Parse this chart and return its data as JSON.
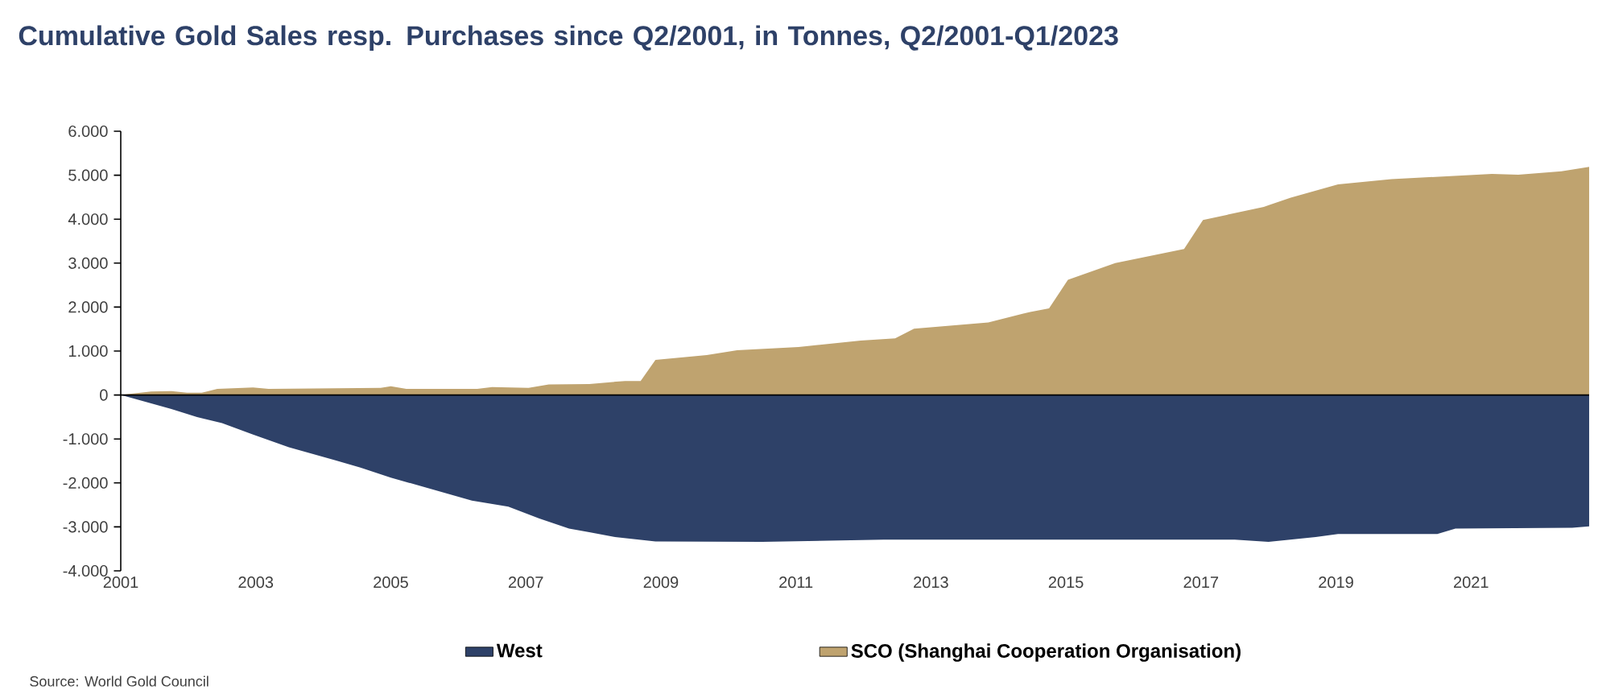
{
  "chart_data": {
    "type": "area",
    "title": "Cumulative Gold Sales resp. Purchases since Q2/2001, in Tonnes, Q2/2001-Q1/2023",
    "annotations": [
      "Source: World Gold Council"
    ],
    "xlim": [
      2001,
      2022.75
    ],
    "xticks": [
      2001,
      2003,
      2005,
      2007,
      2009,
      2011,
      2013,
      2015,
      2017,
      2019,
      2021
    ],
    "ylim": [
      -4000,
      6000
    ],
    "yticks": [
      {
        "value": -4000,
        "label": "-4.000"
      },
      {
        "value": -3000,
        "label": "-3.000"
      },
      {
        "value": -2000,
        "label": "-2.000"
      },
      {
        "value": -1000,
        "label": "-1.000"
      },
      0,
      {
        "value": 1000,
        "label": "1.000"
      },
      {
        "value": 2000,
        "label": "2.000"
      },
      {
        "value": 3000,
        "label": "3.000"
      },
      {
        "value": 4000,
        "label": "4.000"
      },
      {
        "value": 5000,
        "label": "5.000"
      },
      {
        "value": 6000,
        "label": "6.000"
      }
    ],
    "legend": "bottom",
    "series": [
      {
        "name": "West",
        "color": "#2e4168",
        "x": [
          2001,
          2001.75,
          2002.13,
          2002.5,
          2002.96,
          2003.49,
          2004.17,
          2004.55,
          2005,
          2005.53,
          2006.2,
          2006.74,
          2007.2,
          2007.64,
          2007.94,
          2008.32,
          2008.92,
          2010.5,
          2012.3,
          2017.5,
          2018,
          2018.7,
          2019.03,
          2020.5,
          2020.77,
          2022.5,
          2022.75
        ],
        "values": [
          0,
          -320,
          -500,
          -640,
          -900,
          -1190,
          -1480,
          -1650,
          -1880,
          -2110,
          -2400,
          -2540,
          -2810,
          -3040,
          -3120,
          -3230,
          -3330,
          -3340,
          -3290,
          -3290,
          -3340,
          -3230,
          -3160,
          -3160,
          -3040,
          -3020,
          -2990
        ]
      },
      {
        "name": "SCO (Shanghai Cooperation Organisation)",
        "color": "#bfa36f",
        "x": [
          2001,
          2001.45,
          2001.75,
          2001.98,
          2002.2,
          2002.43,
          2002.96,
          2003.19,
          2004.85,
          2005,
          2005.23,
          2006.28,
          2006.5,
          2007.04,
          2007.34,
          2007.94,
          2008.47,
          2008.7,
          2008.92,
          2009.68,
          2010.13,
          2011.04,
          2011.96,
          2012.47,
          2012.75,
          2013.85,
          2014.47,
          2014.75,
          2015.03,
          2015.73,
          2016.75,
          2017.03,
          2017.93,
          2018.33,
          2019.03,
          2019.82,
          2021.31,
          2021.7,
          2022.34,
          2022.75
        ],
        "values": [
          0,
          80,
          90,
          50,
          50,
          140,
          170,
          140,
          160,
          200,
          140,
          140,
          180,
          160,
          240,
          250,
          320,
          320,
          800,
          910,
          1020,
          1090,
          1240,
          1290,
          1510,
          1650,
          1890,
          1970,
          2620,
          3000,
          3320,
          3980,
          4280,
          4490,
          4790,
          4910,
          5030,
          5010,
          5090,
          5190
        ]
      }
    ]
  }
}
